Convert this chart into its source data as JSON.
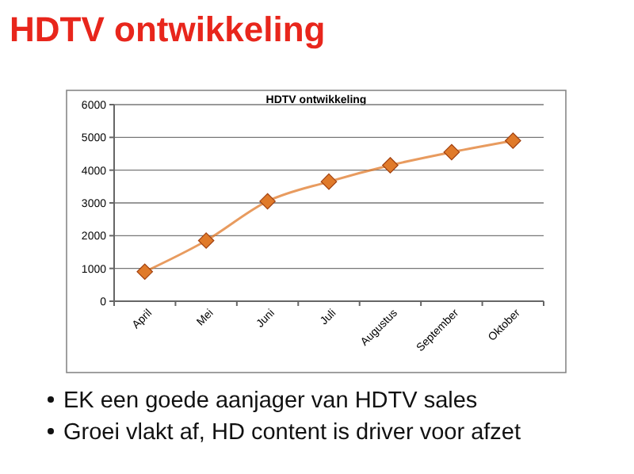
{
  "chart_data": {
    "type": "line",
    "title": "HDTV ontwikkeling",
    "subtitle": "HDTV ontwikkeling",
    "categories": [
      "April",
      "Mei",
      "Juni",
      "Juli",
      "Augustus",
      "September",
      "Oktober"
    ],
    "series": [
      {
        "color": "#e07a2a",
        "values": [
          900,
          1850,
          3050,
          3650,
          4150,
          4550,
          4900
        ]
      }
    ],
    "ylim": [
      0,
      6000
    ],
    "yticks": [
      0,
      1000,
      2000,
      3000,
      4000,
      5000,
      6000
    ],
    "grid": "y",
    "marker": "diamond",
    "line_style": "solid",
    "annotations": [
      "EK een goede aanjager van HDTV sales",
      "Groei vlakt af, HD content is driver voor afzet"
    ]
  }
}
